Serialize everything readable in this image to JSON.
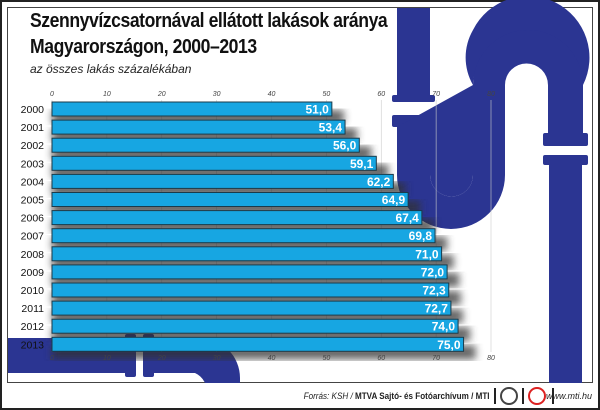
{
  "title_line1": "Szennyvízcsatornával ellátott lakások aránya",
  "title_line2": "Magyarországon, 2000–2013",
  "subtitle": "az összes lakás százalékában",
  "footer": {
    "source_prefix": "Forrás: KSH / ",
    "source_bold": "MTVA Sajtó- és Fotóarchívum / MTI",
    "url": "www.mti.hu",
    "logos": [
      "mtva-logo",
      "mti-logo"
    ]
  },
  "colors": {
    "bar": "#17a6e2",
    "pipe": "#2b3592",
    "shadow": "#555555"
  },
  "chart_data": {
    "type": "bar",
    "orientation": "horizontal",
    "title": "Szennyvízcsatornával ellátott lakások aránya Magyarországon, 2000–2013",
    "subtitle": "az összes lakás százalékában",
    "categories": [
      "2000",
      "2001",
      "2002",
      "2003",
      "2004",
      "2005",
      "2006",
      "2007",
      "2008",
      "2009",
      "2010",
      "2011",
      "2012",
      "2013"
    ],
    "values": [
      51.0,
      53.4,
      56.0,
      59.1,
      62.2,
      64.9,
      67.4,
      69.8,
      71.0,
      72.0,
      72.3,
      72.7,
      74.0,
      75.0
    ],
    "labels": [
      "51,0",
      "53,4",
      "56,0",
      "59,1",
      "62,2",
      "64,9",
      "67,4",
      "69,8",
      "71,0",
      "72,0",
      "72,3",
      "72,7",
      "74,0",
      "75,0"
    ],
    "xlim": [
      0,
      80
    ],
    "xticks": [
      "0",
      "10",
      "20",
      "30",
      "40",
      "50",
      "60",
      "70",
      "80"
    ],
    "grid": true
  }
}
